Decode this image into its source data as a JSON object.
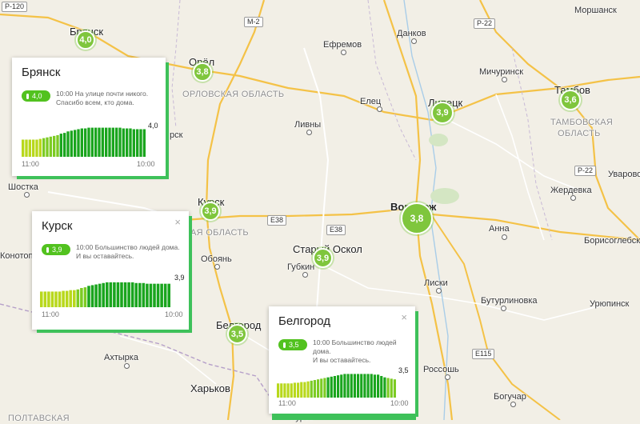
{
  "map": {
    "roads": [
      "Р-120",
      "М-2",
      "Р-22",
      "Р-22",
      "E38",
      "E38",
      "E115"
    ],
    "cities": [
      "Брянск",
      "Орёл",
      "Ефремов",
      "Данков",
      "Моршанск",
      "Мичуринск",
      "Тамбов",
      "Липецк",
      "Елец",
      "Ливны",
      "Курск",
      "Шостка",
      "Воронеж",
      "Старый Оскол",
      "Губкин",
      "Обоянь",
      "Белгород",
      "Лиски",
      "Анна",
      "Жердевка",
      "Уварово",
      "Борисоглебск",
      "Бутурлиновка",
      "Урюпинск",
      "Россошь",
      "Богучар",
      "Ахтырка",
      "Харьков",
      "Курск",
      "рск",
      "Конотоп"
    ],
    "regions": [
      "ОРЛОВСКАЯ ОБЛАСТЬ",
      "ТАМБОВСКАЯ",
      "ОБЛАСТЬ",
      "АЯ ОБЛАСТЬ",
      "ПОЛТАВСКАЯ"
    ],
    "colors": {
      "marker": "#7fc63d",
      "badge": "#52c21f",
      "accent": "#3ec15a",
      "bar_dark": "#1aa51e",
      "bar_mid": "#7ccb23",
      "bar_light": "#b8d81c"
    }
  },
  "markers": [
    {
      "city": "Брянск",
      "value": "4,0"
    },
    {
      "city": "Орёл",
      "value": "3,8"
    },
    {
      "city": "Липецк",
      "value": "3,9"
    },
    {
      "city": "Тамбов",
      "value": "3,6"
    },
    {
      "city": "Курск",
      "value": "3,9"
    },
    {
      "city": "Воронеж",
      "value": "3,8"
    },
    {
      "city": "Старый Оскол",
      "value": "3,9"
    },
    {
      "city": "Белгород",
      "value": "3,5"
    }
  ],
  "cards": [
    {
      "title": "Брянск",
      "badge": "4,0",
      "msg1": "10:00 На улице почти никого.",
      "msg2": "Спасибо всем, кто дома.",
      "value": "4,0",
      "t_start": "11:00",
      "t_end": "10:00",
      "close": "",
      "series": [
        2.3,
        2.3,
        2.3,
        2.3,
        2.3,
        2.4,
        2.5,
        2.6,
        2.7,
        2.8,
        2.9,
        3.1,
        3.2,
        3.4,
        3.5,
        3.6,
        3.7,
        3.8,
        3.8,
        3.9,
        3.9,
        3.9,
        3.9,
        3.9,
        3.9,
        3.9,
        3.9,
        3.9,
        3.9,
        3.8,
        3.8,
        3.8,
        3.7,
        3.7,
        3.7,
        3.7
      ]
    },
    {
      "title": "Курск",
      "badge": "3,9",
      "msg1": "10:00 Большинство людей дома.",
      "msg2": "И вы оставайтесь.",
      "value": "3,9",
      "t_start": "11:00",
      "t_end": "10:00",
      "close": "×",
      "series": [
        2.2,
        2.2,
        2.2,
        2.2,
        2.2,
        2.2,
        2.3,
        2.3,
        2.4,
        2.4,
        2.5,
        2.7,
        2.8,
        3.0,
        3.1,
        3.2,
        3.3,
        3.4,
        3.5,
        3.5,
        3.5,
        3.5,
        3.5,
        3.5,
        3.5,
        3.5,
        3.4,
        3.4,
        3.4,
        3.3,
        3.3,
        3.3,
        3.3,
        3.3,
        3.3,
        3.3
      ]
    },
    {
      "title": "Белгород",
      "badge": "3,5",
      "msg1": "10:00 Большинство людей дома.",
      "msg2": "И вы оставайтесь.",
      "value": "3,5",
      "t_start": "11:00",
      "t_end": "10:00",
      "close": "×",
      "series": [
        2.1,
        2.1,
        2.1,
        2.1,
        2.1,
        2.2,
        2.2,
        2.3,
        2.3,
        2.4,
        2.5,
        2.6,
        2.7,
        2.8,
        2.9,
        3.0,
        3.1,
        3.2,
        3.3,
        3.4,
        3.5,
        3.5,
        3.5,
        3.5,
        3.5,
        3.5,
        3.5,
        3.5,
        3.5,
        3.4,
        3.4,
        3.2,
        3.0,
        2.9,
        2.8,
        2.7
      ]
    }
  ]
}
